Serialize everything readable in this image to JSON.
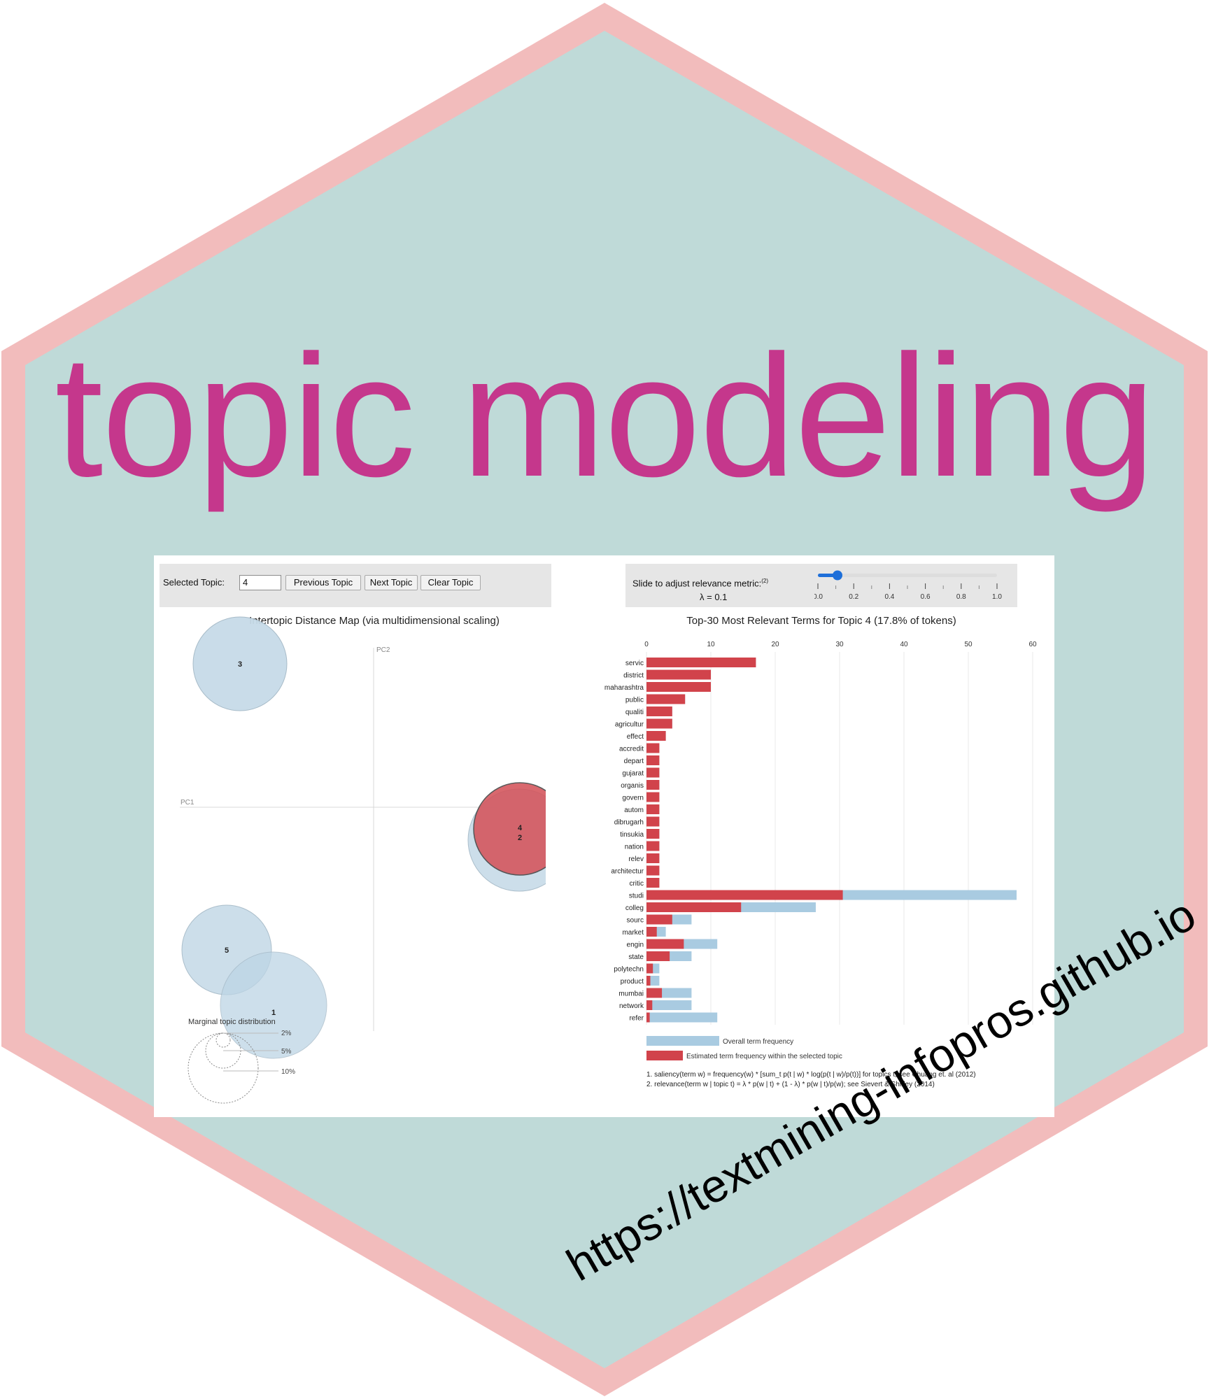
{
  "title": "topic modeling",
  "url": "https://textmining-infopros.github.io",
  "colors": {
    "hex_fill": "#bfdad8",
    "hex_border": "#f2bcbc",
    "title": "#c5378c",
    "topic_circle": "#c7dbe8",
    "topic_selected": "#d4545b",
    "bar_overall": "#a9cbe1",
    "bar_estimated": "#d1434b"
  },
  "controls": {
    "selected_topic_label": "Selected Topic:",
    "selected_topic_value": "4",
    "prev_label": "Previous Topic",
    "next_label": "Next Topic",
    "clear_label": "Clear Topic",
    "slider_label": "Slide to adjust relevance metric:",
    "slider_sup": "(2)",
    "lambda_text": "λ = 0.1",
    "lambda_value": 0.1,
    "slider_ticks": [
      "0.0",
      "0.2",
      "0.4",
      "0.6",
      "0.8",
      "1.0"
    ]
  },
  "left_panel": {
    "title": "Intertopic Distance Map (via multidimensional scaling)",
    "pc1": "PC1",
    "pc2": "PC2",
    "marginal_label": "Marginal topic distribution",
    "size_legend": [
      "2%",
      "5%",
      "10%"
    ],
    "topics": [
      {
        "label": "3"
      },
      {
        "label": "4"
      },
      {
        "label": "2"
      },
      {
        "label": "5"
      },
      {
        "label": "1"
      }
    ]
  },
  "chart_data": {
    "type": "bar",
    "orientation": "horizontal",
    "title": "Top-30 Most Relevant Terms for Topic 4 (17.8% of tokens)",
    "xlim": [
      0,
      60
    ],
    "x_ticks": [
      "0",
      "10",
      "20",
      "30",
      "40",
      "50",
      "60"
    ],
    "categories": [
      "servic",
      "district",
      "maharashtra",
      "public",
      "qualiti",
      "agricultur",
      "effect",
      "accredit",
      "depart",
      "gujarat",
      "organis",
      "govern",
      "autom",
      "dibrugarh",
      "tinsukia",
      "nation",
      "relev",
      "architectur",
      "critic",
      "studi",
      "colleg",
      "sourc",
      "market",
      "engin",
      "state",
      "polytechn",
      "product",
      "mumbai",
      "network",
      "refer"
    ],
    "series": [
      {
        "name": "Overall term frequency",
        "values": [
          17,
          10,
          10,
          6,
          4,
          4,
          3,
          2,
          2,
          2,
          2,
          2,
          2,
          2,
          2,
          2,
          2,
          2,
          2,
          57.5,
          26.3,
          7,
          3,
          11,
          7,
          2,
          2,
          7,
          7,
          11
        ]
      },
      {
        "name": "Estimated term frequency within the selected topic",
        "values": [
          17,
          10,
          10,
          6,
          4,
          4,
          3,
          2,
          2,
          2,
          2,
          2,
          2,
          2,
          2,
          2,
          2,
          2,
          2,
          30.5,
          14.7,
          4,
          1.6,
          5.8,
          3.6,
          1,
          0.6,
          2.4,
          0.9,
          0.5
        ]
      }
    ],
    "legend": [
      "Overall term frequency",
      "Estimated term frequency within the selected topic"
    ]
  },
  "footnotes": [
    "1. saliency(term w) = frequency(w) * [sum_t p(t | w) * log(p(t | w)/p(t))] for topics t; see Chuang et. al (2012)",
    "2. relevance(term w | topic t) = λ * p(w | t) + (1 - λ) * p(w | t)/p(w); see Sievert & Shirley (2014)"
  ]
}
